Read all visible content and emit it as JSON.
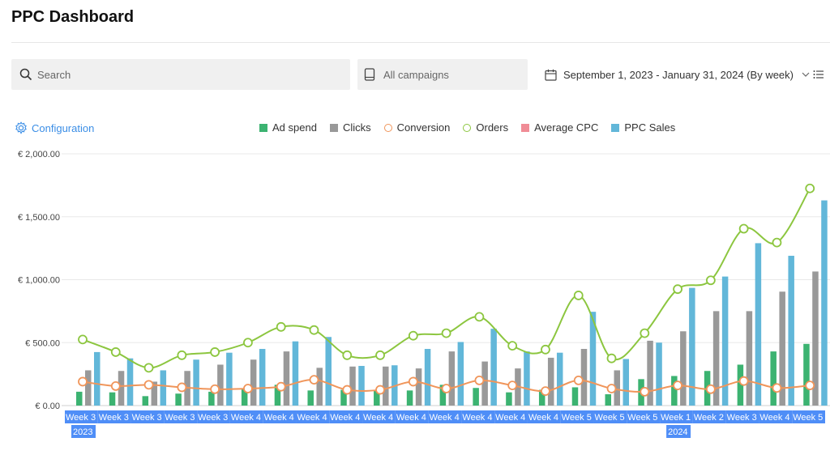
{
  "page": {
    "title": "PPC Dashboard"
  },
  "filters": {
    "search_placeholder": "Search",
    "campaigns_label": "All campaigns",
    "date_range": "September 1, 2023 - January 31, 2024 (By week)"
  },
  "config_label": "Configuration",
  "legend": [
    {
      "name": "Ad spend",
      "color": "#3cb371",
      "kind": "bar"
    },
    {
      "name": "Clicks",
      "color": "#999999",
      "kind": "bar"
    },
    {
      "name": "Conversion",
      "color": "#f0955a",
      "kind": "line"
    },
    {
      "name": "Orders",
      "color": "#8cc63f",
      "kind": "line"
    },
    {
      "name": "Average CPC",
      "color": "#f08c96",
      "kind": "bar"
    },
    {
      "name": "PPC Sales",
      "color": "#62b7d9",
      "kind": "bar"
    }
  ],
  "chart_data": {
    "type": "bar",
    "ylim": [
      0,
      2000
    ],
    "y_ticks": [
      "€ 0.00",
      "€ 500.00",
      "€ 1,000.00",
      "€ 1,500.00",
      "€ 2,000.00"
    ],
    "y_tick_values": [
      0,
      500,
      1000,
      1500,
      2000
    ],
    "categories": [
      "Week 3",
      "Week 3",
      "Week 3",
      "Week 3",
      "Week 3",
      "Week 4",
      "Week 4",
      "Week 4",
      "Week 4",
      "Week 4",
      "Week 4",
      "Week 4",
      "Week 4",
      "Week 4",
      "Week 4",
      "Week 5",
      "Week 5",
      "Week 5",
      "Week 1",
      "Week 2",
      "Week 3",
      "Week 4",
      "Week 5"
    ],
    "year_labels": [
      {
        "label": "2023",
        "index": 0
      },
      {
        "label": "2024",
        "index": 18
      }
    ],
    "grid": true,
    "legend_position": "top",
    "series": [
      {
        "name": "Ad spend",
        "type": "bar",
        "color": "#3cb371",
        "values": [
          110,
          105,
          75,
          95,
          110,
          130,
          165,
          120,
          125,
          125,
          120,
          165,
          140,
          105,
          125,
          145,
          90,
          210,
          235,
          275,
          325,
          430,
          490
        ]
      },
      {
        "name": "Clicks",
        "type": "bar",
        "color": "#999999",
        "values": [
          280,
          275,
          190,
          275,
          325,
          365,
          430,
          300,
          310,
          310,
          295,
          430,
          350,
          295,
          380,
          450,
          280,
          515,
          590,
          750,
          750,
          905,
          1065
        ]
      },
      {
        "name": "PPC Sales",
        "type": "bar",
        "color": "#62b7d9",
        "values": [
          425,
          375,
          280,
          365,
          420,
          450,
          510,
          545,
          315,
          320,
          450,
          505,
          610,
          430,
          420,
          745,
          370,
          500,
          935,
          1025,
          1290,
          1190,
          1630
        ]
      },
      {
        "name": "Orders",
        "type": "line",
        "color": "#8cc63f",
        "values": [
          525,
          425,
          300,
          400,
          425,
          500,
          625,
          600,
          400,
          400,
          555,
          575,
          705,
          475,
          445,
          875,
          375,
          575,
          925,
          995,
          1405,
          1295,
          1725
        ]
      },
      {
        "name": "Conversion",
        "type": "line",
        "color": "#f0955a",
        "values": [
          190,
          155,
          165,
          145,
          130,
          135,
          150,
          205,
          125,
          125,
          190,
          135,
          200,
          160,
          115,
          200,
          135,
          110,
          160,
          130,
          195,
          140,
          160
        ]
      }
    ]
  }
}
